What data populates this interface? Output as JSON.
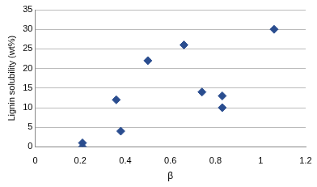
{
  "chart_data": {
    "type": "scatter",
    "x_label": "β",
    "y_label": "Lignin solubility (wt%)",
    "x": [
      0.21,
      0.21,
      0.36,
      0.38,
      0.5,
      0.66,
      0.74,
      0.83,
      0.83,
      1.06
    ],
    "values": [
      1,
      0,
      12,
      4,
      22,
      26,
      14,
      13,
      10,
      30
    ],
    "color": "#2a4d8f",
    "marker": "diamond",
    "xlim": [
      0,
      1.2
    ],
    "xticks": [
      0,
      0.2,
      0.4,
      0.6,
      0.8,
      1,
      1.2
    ],
    "ylim": [
      0,
      35
    ],
    "yticks": [
      0,
      5,
      10,
      15,
      20,
      25,
      30,
      35
    ],
    "grid": true
  }
}
